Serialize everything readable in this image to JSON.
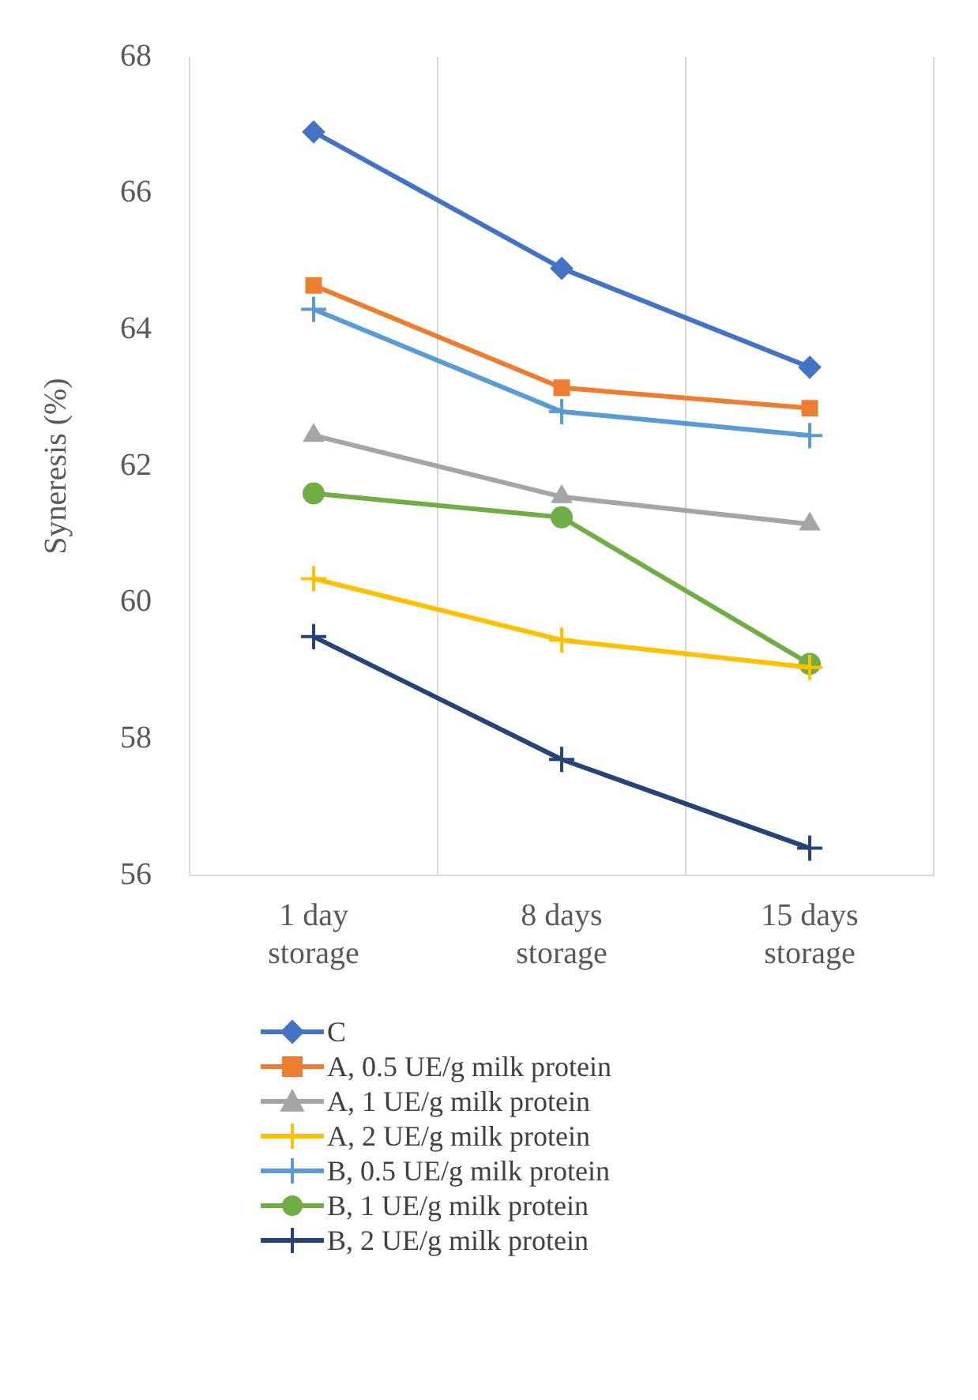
{
  "chart_data": {
    "type": "line",
    "ylabel": "Syneresis (%)",
    "categories": [
      "1 day storage",
      "8 days storage",
      "15 days storage"
    ],
    "ylim": [
      56,
      68
    ],
    "yticks": [
      56,
      58,
      60,
      62,
      64,
      66,
      68
    ],
    "grid": "x",
    "legend": "bottom",
    "series": [
      {
        "name": "C",
        "color": "#4472c4",
        "marker": "diamond",
        "values": [
          66.9,
          64.9,
          63.45
        ]
      },
      {
        "name": "A, 0.5 UE/g milk protein",
        "color": "#ed7d31",
        "marker": "square",
        "values": [
          64.65,
          63.15,
          62.85
        ]
      },
      {
        "name": "A, 1 UE/g milk protein",
        "color": "#a5a5a5",
        "marker": "triangle",
        "values": [
          62.45,
          61.55,
          61.15
        ]
      },
      {
        "name": "A, 2 UE/g milk protein",
        "color": "#ffc000",
        "marker": "cross",
        "values": [
          60.35,
          59.45,
          59.05
        ]
      },
      {
        "name": "B, 0.5 UE/g milk protein",
        "color": "#5b9bd5",
        "marker": "cross",
        "values": [
          64.3,
          62.8,
          62.45
        ]
      },
      {
        "name": "B, 1 UE/g milk protein",
        "color": "#70ad47",
        "marker": "circle",
        "values": [
          61.6,
          61.25,
          59.1
        ]
      },
      {
        "name": "B, 2 UE/g milk protein",
        "color": "#264478",
        "marker": "cross",
        "values": [
          59.5,
          57.7,
          56.4
        ]
      }
    ]
  }
}
